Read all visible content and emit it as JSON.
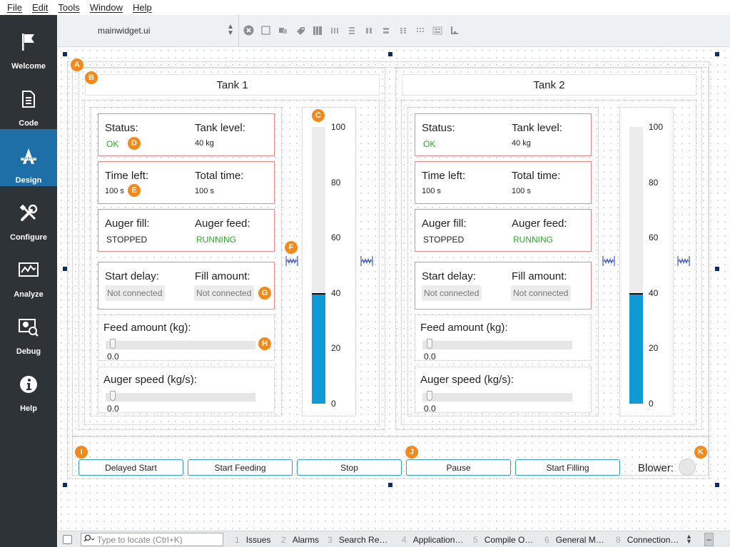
{
  "menu": [
    "File",
    "Edit",
    "Tools",
    "Window",
    "Help"
  ],
  "sidebar": {
    "modes": [
      {
        "label": "Welcome",
        "icon": "flag-icon"
      },
      {
        "label": "Code",
        "icon": "document-icon"
      },
      {
        "label": "Design",
        "icon": "design-icon",
        "active": true
      },
      {
        "label": "Configure",
        "icon": "tools-icon"
      },
      {
        "label": "Analyze",
        "icon": "analyze-icon"
      },
      {
        "label": "Debug",
        "icon": "debug-icon"
      },
      {
        "label": "Help",
        "icon": "info-icon"
      }
    ]
  },
  "toolbar": {
    "file_name": "mainwidget.ui",
    "tools": [
      "close-icon",
      "widget-edit-icon",
      "signals-slots-icon",
      "buddy-icon",
      "tab-order-icon",
      "layout-horizontal-icon",
      "layout-vertical-icon",
      "splitter-horizontal-icon",
      "splitter-vertical-icon",
      "form-layout-icon",
      "grid-layout-icon",
      "break-layout-icon",
      "adjust-size-icon"
    ]
  },
  "tanks": [
    {
      "title": "Tank 1",
      "status_label": "Status:",
      "status_value": "OK",
      "level_label": "Tank level:",
      "level_value": "40 kg",
      "time_left_label": "Time left:",
      "time_left_value": "100 s",
      "total_time_label": "Total time:",
      "total_time_value": "100 s",
      "auger_fill_label": "Auger fill:",
      "auger_fill_value": "STOPPED",
      "auger_feed_label": "Auger feed:",
      "auger_feed_value": "RUNNING",
      "start_delay_label": "Start delay:",
      "start_delay_value": "Not connected",
      "fill_amount_label": "Fill amount:",
      "fill_amount_value": "Not connected",
      "feed_amount_label": "Feed amount (kg):",
      "feed_amount_value": "0.0",
      "auger_speed_label": "Auger speed (kg/s):",
      "auger_speed_value": "0.0",
      "level_bar": {
        "level": 40,
        "min": 0,
        "max": 100,
        "ticks": [
          "100",
          "80",
          "60",
          "40",
          "20",
          "0"
        ]
      }
    },
    {
      "title": "Tank 2",
      "status_label": "Status:",
      "status_value": "OK",
      "level_label": "Tank level:",
      "level_value": "40 kg",
      "time_left_label": "Time left:",
      "time_left_value": "100 s",
      "total_time_label": "Total time:",
      "total_time_value": "100 s",
      "auger_fill_label": "Auger fill:",
      "auger_fill_value": "STOPPED",
      "auger_feed_label": "Auger feed:",
      "auger_feed_value": "RUNNING",
      "start_delay_label": "Start delay:",
      "start_delay_value": "Not connected",
      "fill_amount_label": "Fill amount:",
      "fill_amount_value": "Not connected",
      "feed_amount_label": "Feed amount (kg):",
      "feed_amount_value": "0.0",
      "auger_speed_label": "Auger speed (kg/s):",
      "auger_speed_value": "0.0",
      "level_bar": {
        "level": 40,
        "min": 0,
        "max": 100,
        "ticks": [
          "100",
          "80",
          "60",
          "40",
          "20",
          "0"
        ]
      }
    }
  ],
  "buttons": [
    "Delayed Start",
    "Start Feeding",
    "Stop",
    "Pause",
    "Start Filling"
  ],
  "blower_label": "Blower:",
  "markers": [
    "A",
    "B",
    "C",
    "D",
    "E",
    "F",
    "G",
    "H",
    "I",
    "J",
    "K"
  ],
  "statusbar": {
    "locate_placeholder": "Type to locate (Ctrl+K)",
    "panes": [
      {
        "num": "1",
        "label": "Issues"
      },
      {
        "num": "2",
        "label": "Alarms"
      },
      {
        "num": "3",
        "label": "Search Re…"
      },
      {
        "num": "4",
        "label": "Application…"
      },
      {
        "num": "5",
        "label": "Compile O…"
      },
      {
        "num": "6",
        "label": "General M…"
      },
      {
        "num": "8",
        "label": "Connection…"
      }
    ]
  },
  "colors": {
    "accent": "#1e6fa8",
    "sidebar": "#2e3338",
    "status_ok": "#2eaa2e",
    "marker": "#f28a1b",
    "bar_fill": "#0f9ad6",
    "group_border": "#e88888"
  }
}
